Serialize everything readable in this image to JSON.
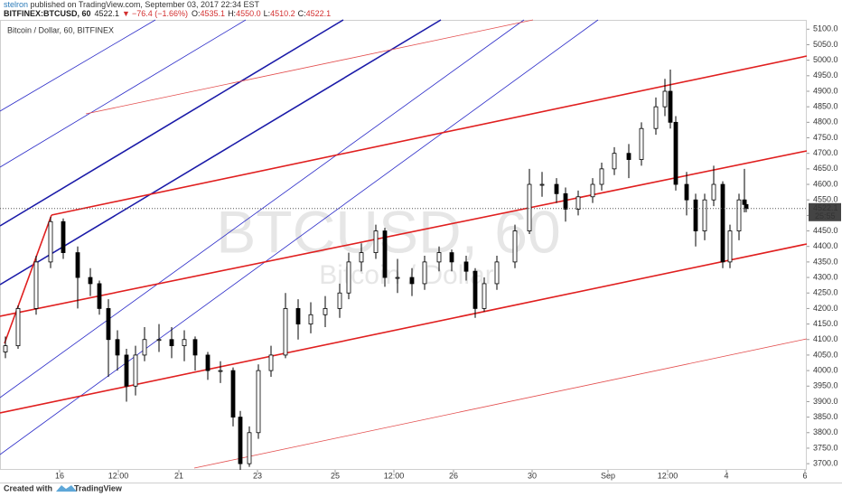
{
  "header": {
    "author": "stelron",
    "published": " published on TradingView.com, September 03, 2017 22:34 EST",
    "symbol": "BITFINEX:BTCUSD, 60",
    "price": "4522.1",
    "arrow": "▼",
    "change": "−76.4 (−1.66%)",
    "ohlc": [
      {
        "label": "O:",
        "value": "4535.1"
      },
      {
        "label": "H:",
        "value": "4550.0"
      },
      {
        "label": "L:",
        "value": "4510.2"
      },
      {
        "label": "C:",
        "value": "4522.1"
      }
    ]
  },
  "chart_data": {
    "type": "candlestick",
    "title": "Bitcoin / Dollar, 60, BITFINEX",
    "watermark": "BTCUSD, 60",
    "watermark_subtitle": "Bitcoin / Dollar",
    "x": [
      3,
      10,
      20,
      28,
      35,
      43,
      50,
      55,
      60,
      65,
      70,
      75,
      80,
      88,
      95,
      102,
      108,
      115,
      122,
      129,
      133,
      138,
      143,
      150,
      158,
      165,
      172,
      180,
      188,
      193,
      200,
      208,
      213,
      220,
      228,
      235,
      243,
      250,
      258,
      263,
      268,
      275,
      285,
      293,
      300,
      308,
      313,
      320,
      328,
      333,
      340,
      348,
      355,
      363,
      368,
      371,
      374,
      380,
      385,
      390,
      395,
      400,
      404,
      409,
      412,
      413
    ],
    "open": [
      4060,
      4080,
      4200,
      4350,
      4480,
      4380,
      4300,
      4280,
      4200,
      4100,
      4050,
      3950,
      4050,
      4100,
      4100,
      4080,
      4100,
      4050,
      4000,
      4000,
      3850,
      3700,
      3800,
      4000,
      4050,
      4200,
      4150,
      4180,
      4200,
      4250,
      4350,
      4380,
      4450,
      4300,
      4300,
      4280,
      4350,
      4380,
      4350,
      4320,
      4200,
      4280,
      4350,
      4450,
      4600,
      4600,
      4570,
      4520,
      4560,
      4600,
      4650,
      4700,
      4680,
      4780,
      4850,
      4900,
      4800,
      4600,
      4550,
      4450,
      4550,
      4600,
      4350,
      4450,
      4550,
      4535.1
    ],
    "high": [
      4110,
      4210,
      4370,
      4495,
      4490,
      4400,
      4330,
      4290,
      4230,
      4130,
      4070,
      4080,
      4140,
      4150,
      4140,
      4130,
      4110,
      4060,
      4030,
      4010,
      3870,
      3820,
      4020,
      4080,
      4250,
      4230,
      4220,
      4240,
      4280,
      4380,
      4410,
      4470,
      4460,
      4360,
      4330,
      4370,
      4400,
      4390,
      4370,
      4330,
      4300,
      4370,
      4470,
      4650,
      4640,
      4620,
      4590,
      4580,
      4620,
      4670,
      4720,
      4730,
      4800,
      4880,
      4940,
      4970,
      4820,
      4640,
      4570,
      4570,
      4660,
      4610,
      4470,
      4570,
      4650,
      4550.0
    ],
    "low": [
      4040,
      4070,
      4180,
      4330,
      4360,
      4200,
      4240,
      4180,
      3980,
      4000,
      3900,
      3920,
      4030,
      4060,
      4040,
      4030,
      4000,
      3970,
      3960,
      3820,
      3680,
      3690,
      3780,
      3980,
      4040,
      4100,
      4120,
      4140,
      4170,
      4230,
      4320,
      4360,
      4270,
      4250,
      4240,
      4260,
      4320,
      4320,
      4290,
      4170,
      4190,
      4260,
      4330,
      4440,
      4560,
      4540,
      4480,
      4500,
      4540,
      4580,
      4630,
      4620,
      4660,
      4760,
      4820,
      4780,
      4580,
      4500,
      4400,
      4420,
      4530,
      4330,
      4330,
      4420,
      4510,
      4510.2
    ],
    "close": [
      4080,
      4200,
      4350,
      4480,
      4380,
      4300,
      4280,
      4200,
      4100,
      4050,
      3950,
      4050,
      4100,
      4100,
      4080,
      4100,
      4050,
      4000,
      4000,
      3850,
      3700,
      3800,
      4000,
      4050,
      4200,
      4150,
      4180,
      4200,
      4250,
      4350,
      4380,
      4450,
      4300,
      4300,
      4280,
      4350,
      4380,
      4350,
      4320,
      4200,
      4280,
      4350,
      4450,
      4600,
      4600,
      4570,
      4520,
      4560,
      4600,
      4650,
      4700,
      4680,
      4780,
      4850,
      4900,
      4800,
      4600,
      4550,
      4450,
      4550,
      4600,
      4350,
      4450,
      4550,
      4535.1,
      4522.1
    ],
    "up_color": "#ffffff",
    "down_color": "#000000",
    "wick_color": "#000000",
    "last_price": 4522.1,
    "countdown": "25:55",
    "xlim": [
      0,
      446.5
    ],
    "xticks": [
      {
        "value": 33,
        "label": "16"
      },
      {
        "value": 65.5,
        "label": "12:00"
      },
      {
        "value": 99,
        "label": "21"
      },
      {
        "value": 142.5,
        "label": "23"
      },
      {
        "value": 185.5,
        "label": "25"
      },
      {
        "value": 218,
        "label": "12:00"
      },
      {
        "value": 251,
        "label": "26"
      },
      {
        "value": 294.5,
        "label": "30"
      },
      {
        "value": 336.5,
        "label": "Sep"
      },
      {
        "value": 369.5,
        "label": "12:00"
      },
      {
        "value": 402,
        "label": "4"
      },
      {
        "value": 445.5,
        "label": "6"
      }
    ],
    "ylim": [
      3680,
      5130
    ],
    "yticks": [
      {
        "value": 3700,
        "label": "3700.0"
      },
      {
        "value": 3750,
        "label": "3750.0"
      },
      {
        "value": 3800,
        "label": "3800.0"
      },
      {
        "value": 3850,
        "label": "3850.0"
      },
      {
        "value": 3900,
        "label": "3900.0"
      },
      {
        "value": 3950,
        "label": "3950.0"
      },
      {
        "value": 4000,
        "label": "4000.0"
      },
      {
        "value": 4050,
        "label": "4050.0"
      },
      {
        "value": 4100,
        "label": "4100.0"
      },
      {
        "value": 4150,
        "label": "4150.0"
      },
      {
        "value": 4200,
        "label": "4200.0"
      },
      {
        "value": 4250,
        "label": "4250.0"
      },
      {
        "value": 4300,
        "label": "4300.0"
      },
      {
        "value": 4350,
        "label": "4350.0"
      },
      {
        "value": 4400,
        "label": "4400.0"
      },
      {
        "value": 4450,
        "label": "4450.0"
      },
      {
        "value": 4500,
        "label": "4500.0"
      },
      {
        "value": 4550,
        "label": "4550.0"
      },
      {
        "value": 4600,
        "label": "4600.0"
      },
      {
        "value": 4650,
        "label": "4650.0"
      },
      {
        "value": 4700,
        "label": "4700.0"
      },
      {
        "value": 4750,
        "label": "4750.0"
      },
      {
        "value": 4800,
        "label": "4800.0"
      },
      {
        "value": 4850,
        "label": "4850.0"
      },
      {
        "value": 4900,
        "label": "4900.0"
      },
      {
        "value": 4950,
        "label": "4950.0"
      },
      {
        "value": 5000,
        "label": "5000.0"
      },
      {
        "value": 5050,
        "label": "5050.0"
      },
      {
        "value": 5100,
        "label": "5100.0"
      }
    ]
  },
  "footer": {
    "created": "Created with",
    "brand": "TradingView"
  }
}
